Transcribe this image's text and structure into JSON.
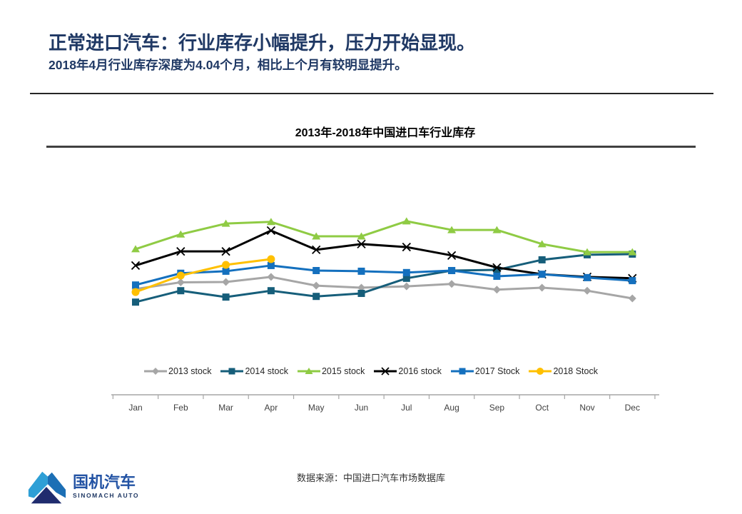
{
  "header": {
    "title": "正常进口汽车：行业库存小幅提升，压力开始显现。",
    "subtitle": "2018年4月行业库存深度为4.04个月，相比上个月有较明显提升。",
    "title_color": "#1F3864"
  },
  "chart_data": {
    "type": "line",
    "title": "2013年-2018年中国进口车行业库存",
    "categories": [
      "Jan",
      "Feb",
      "Mar",
      "Apr",
      "May",
      "Jun",
      "Jul",
      "Aug",
      "Sep",
      "Oct",
      "Nov",
      "Dec"
    ],
    "xlabel": "",
    "ylabel": "",
    "unit": "个月",
    "y_axis_visible": false,
    "grid": false,
    "ylim": [
      0,
      6.8
    ],
    "legend_position": "bottom",
    "highlight_value_from_subtitle": 4.04,
    "series": [
      {
        "name": "2013 stock",
        "color": "#A6A6A6",
        "marker": "diamond",
        "values": [
          3.15,
          3.35,
          3.36,
          3.51,
          3.25,
          3.19,
          3.23,
          3.3,
          3.13,
          3.19,
          3.1,
          2.87
        ]
      },
      {
        "name": "2014 stock",
        "color": "#165E7A",
        "marker": "square",
        "values": [
          2.76,
          3.1,
          2.91,
          3.1,
          2.93,
          3.02,
          3.47,
          3.7,
          3.72,
          4.02,
          4.17,
          4.19
        ]
      },
      {
        "name": "2015 stock",
        "color": "#8FCB44",
        "marker": "triangle",
        "values": [
          4.34,
          4.78,
          5.1,
          5.15,
          4.72,
          4.72,
          5.17,
          4.91,
          4.91,
          4.49,
          4.25,
          4.25
        ]
      },
      {
        "name": "2016 stock",
        "color": "#000000",
        "marker": "x",
        "values": [
          3.85,
          4.27,
          4.27,
          4.89,
          4.32,
          4.49,
          4.4,
          4.15,
          3.79,
          3.59,
          3.51,
          3.47
        ]
      },
      {
        "name": "2017 Stock",
        "color": "#1470BE",
        "marker": "square",
        "values": [
          3.27,
          3.62,
          3.68,
          3.85,
          3.7,
          3.68,
          3.64,
          3.7,
          3.53,
          3.59,
          3.49,
          3.4
        ]
      },
      {
        "name": "2018 Stock",
        "color": "#FFC000",
        "marker": "circle",
        "values": [
          3.06,
          3.55,
          3.87,
          4.04
        ]
      }
    ],
    "axis_color": "#A6A6A6",
    "tick_label_color": "#404040"
  },
  "footer": {
    "source": "数据来源：中国进口汽车市场数据库"
  },
  "logo": {
    "name_cn": "国机汽车",
    "name_en": "SINOMACH AUTO",
    "colors": {
      "light": "#2E9FD6",
      "mid": "#1C6FB5",
      "dark": "#202C6E",
      "text_cn": "#2353A4",
      "text_en": "#1F3864"
    }
  }
}
